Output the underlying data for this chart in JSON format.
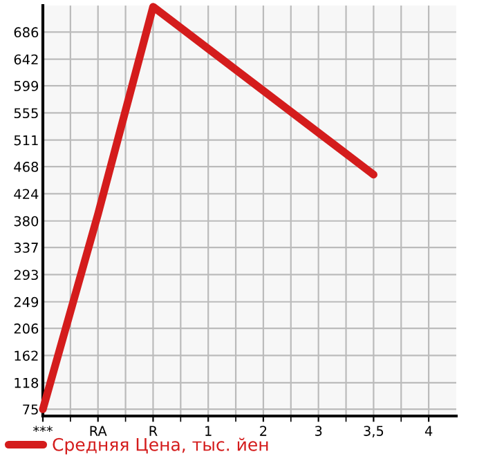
{
  "chart_data": {
    "type": "line",
    "categories": [
      "***",
      "RA",
      "R",
      "1",
      "2",
      "3",
      "3,5",
      "4"
    ],
    "series": [
      {
        "name": "Средняя Цена, тыс. йен",
        "color": "#d41c1c",
        "values": [
          75,
          391,
          727,
          659,
          591,
          523,
          455,
          null
        ]
      }
    ],
    "ylim": [
      64,
      729
    ],
    "yticks": [
      75,
      118,
      162,
      206,
      249,
      293,
      337,
      380,
      424,
      468,
      511,
      555,
      599,
      642,
      686
    ],
    "grid": true,
    "legend": "bottom left",
    "marker": "none",
    "line_style": "solid"
  }
}
